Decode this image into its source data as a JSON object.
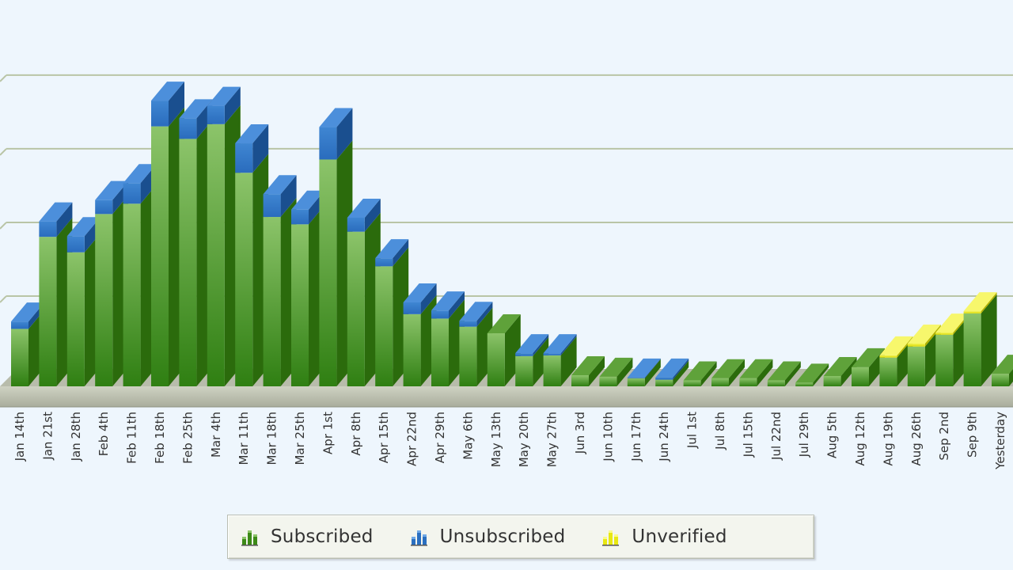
{
  "chart_data": {
    "type": "bar",
    "stacked": true,
    "style": "3d",
    "categories": [
      "Jan 14th",
      "Jan 21st",
      "Jan 28th",
      "Feb 4th",
      "Feb 11th",
      "Feb 18th",
      "Feb 25th",
      "Mar 4th",
      "Mar 11th",
      "Mar 18th",
      "Mar 25th",
      "Apr 1st",
      "Apr 8th",
      "Apr 15th",
      "Apr 22nd",
      "Apr 29th",
      "May 6th",
      "May 13th",
      "May 20th",
      "May 27th",
      "Jun 3rd",
      "Jun 10th",
      "Jun 17th",
      "Jun 24th",
      "Jul 1st",
      "Jul 8th",
      "Jul 15th",
      "Jul 22nd",
      "Jul 29th",
      "Aug 5th",
      "Aug 12th",
      "Aug 19th",
      "Aug 26th",
      "Sep 2nd",
      "Sep 9th",
      "Yesterday"
    ],
    "series": [
      {
        "name": "Subscribed",
        "color": "#3c8a17",
        "values": [
          78,
          203,
          182,
          234,
          248,
          353,
          336,
          356,
          290,
          230,
          220,
          308,
          210,
          163,
          98,
          92,
          81,
          72,
          41,
          42,
          15,
          13,
          11,
          9,
          8,
          11,
          11,
          8,
          5,
          14,
          26,
          39,
          54,
          70,
          99,
          17
        ]
      },
      {
        "name": "Unsubscribed",
        "color": "#2a6fc0",
        "values": [
          10,
          21,
          22,
          19,
          28,
          35,
          28,
          25,
          40,
          31,
          20,
          44,
          19,
          11,
          16,
          11,
          8,
          0,
          4,
          3,
          0,
          0,
          1,
          3,
          0,
          0,
          0,
          0,
          0,
          0,
          0,
          0,
          0,
          0,
          0,
          0
        ]
      },
      {
        "name": "Unverified",
        "color": "#e8e811",
        "values": [
          0,
          0,
          0,
          0,
          0,
          0,
          0,
          0,
          0,
          0,
          0,
          0,
          0,
          0,
          0,
          0,
          0,
          0,
          0,
          0,
          0,
          0,
          0,
          0,
          0,
          0,
          0,
          0,
          0,
          0,
          0,
          3,
          4,
          3,
          3,
          0
        ]
      }
    ],
    "ylim": [
      0,
      430
    ],
    "grid": true,
    "legend_position": "bottom",
    "colors": {
      "background": "#eef6fd",
      "gridline": "#b9c5a6",
      "floor": "#c8cbbd"
    }
  },
  "legend": {
    "items": [
      {
        "label": "Subscribed",
        "icon": "green-bar-chart-icon",
        "color": "#3c8a17"
      },
      {
        "label": "Unsubscribed",
        "icon": "blue-bar-chart-icon",
        "color": "#2a6fc0"
      },
      {
        "label": "Unverified",
        "icon": "yellow-bar-chart-icon",
        "color": "#e8e811"
      }
    ]
  }
}
